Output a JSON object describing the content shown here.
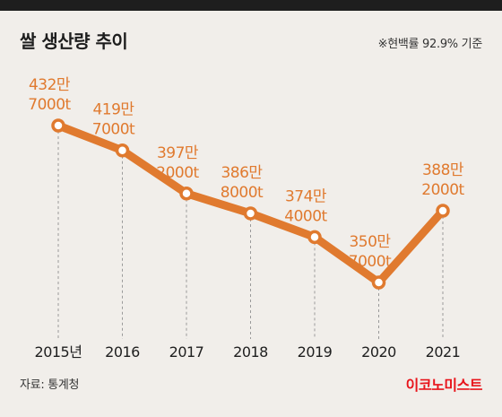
{
  "header": {
    "title": "쌀 생산량 추이",
    "note": "※현백률 92.9% 기준"
  },
  "footer": {
    "source": "자료: 통계청",
    "brand": "이코노미스트"
  },
  "colors": {
    "line": "#e07a2f",
    "label": "#e07a2f",
    "marker_fill": "#ffffff",
    "guide": "#9a9a9a",
    "tick": "#1e1e1e",
    "brand": "#e8141b"
  },
  "chart_data": {
    "type": "line",
    "title": "쌀 생산량 추이",
    "categories": [
      "2015년",
      "2016",
      "2017",
      "2018",
      "2019",
      "2020",
      "2021"
    ],
    "values": [
      4327000,
      4197000,
      3972000,
      3868000,
      3744000,
      3507000,
      3882000
    ],
    "value_unit": "t",
    "data_labels": [
      [
        "432만",
        "7000t"
      ],
      [
        "419만",
        "7000t"
      ],
      [
        "397만",
        "2000t"
      ],
      [
        "386만",
        "8000t"
      ],
      [
        "374만",
        "4000t"
      ],
      [
        "350만",
        "7000t"
      ],
      [
        "388만",
        "2000t"
      ]
    ],
    "grid": false,
    "legend": "none"
  }
}
